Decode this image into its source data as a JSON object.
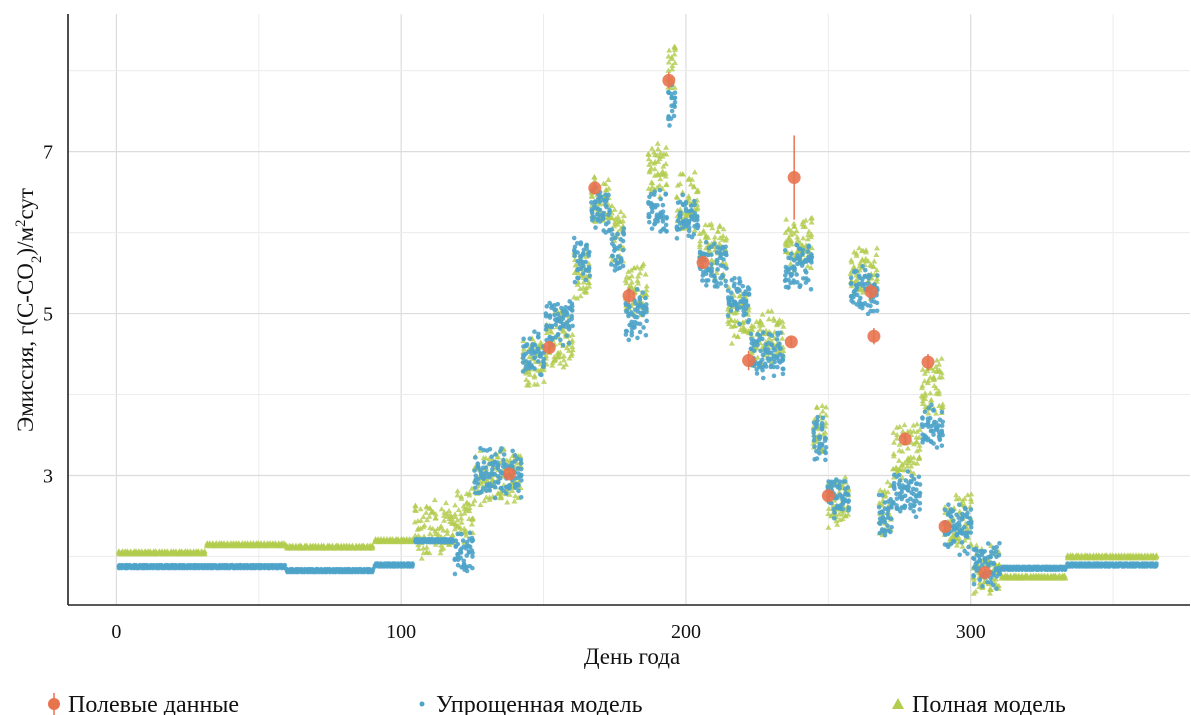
{
  "chart_data": {
    "type": "scatter",
    "xlabel": "День года",
    "ylabel_parts": {
      "main": "Эмиссия, г(C-CO",
      "sub": "2",
      "mid": ")/м",
      "sup": "2",
      "end": "сут"
    },
    "xlim": [
      -17,
      377
    ],
    "ylim": [
      1.4,
      8.7
    ],
    "x_ticks": [
      0,
      100,
      200,
      300
    ],
    "y_ticks": [
      3,
      5,
      7
    ],
    "grid": true,
    "legend_position": "bottom",
    "colors": {
      "field": "#e8734f",
      "simple": "#4ea3c9",
      "full": "#b2cc4e"
    },
    "series": [
      {
        "key": "field",
        "name": "Полевые данные",
        "marker": "circle",
        "points": [
          {
            "x": 138,
            "y": 3.02,
            "err": 0.05
          },
          {
            "x": 152,
            "y": 4.58,
            "err": 0.08
          },
          {
            "x": 168,
            "y": 6.55,
            "err": 0.08
          },
          {
            "x": 180,
            "y": 5.22,
            "err": 0.1
          },
          {
            "x": 194,
            "y": 7.88,
            "err": 0.1
          },
          {
            "x": 206,
            "y": 5.63,
            "err": 0.08
          },
          {
            "x": 222,
            "y": 4.42,
            "err": 0.12
          },
          {
            "x": 237,
            "y": 4.65,
            "err": 0.06
          },
          {
            "x": 238,
            "y": 6.68,
            "err": 0.52
          },
          {
            "x": 250,
            "y": 2.75,
            "err": 0.06
          },
          {
            "x": 265,
            "y": 5.27,
            "err": 0.1
          },
          {
            "x": 266,
            "y": 4.72,
            "err": 0.1
          },
          {
            "x": 277,
            "y": 3.45,
            "err": 0.08
          },
          {
            "x": 285,
            "y": 4.4,
            "err": 0.1
          },
          {
            "x": 291,
            "y": 2.37,
            "err": 0.06
          },
          {
            "x": 305,
            "y": 1.8,
            "err": 0.05
          }
        ]
      },
      {
        "key": "simple",
        "name": "Упрощенная модель",
        "marker": "dot",
        "segments": [
          {
            "x0": 1,
            "x1": 59,
            "y": 1.88
          },
          {
            "x0": 60,
            "x1": 90,
            "y": 1.83
          },
          {
            "x0": 91,
            "x1": 104,
            "y": 1.9
          },
          {
            "x0": 105,
            "x1": 118,
            "y": 2.2
          },
          {
            "x0": 119,
            "x1": 125,
            "y": 2.05
          },
          {
            "x0": 126,
            "x1": 142,
            "y": 3.05
          },
          {
            "x0": 143,
            "x1": 150,
            "y": 4.5
          },
          {
            "x0": 151,
            "x1": 160,
            "y": 4.9
          },
          {
            "x0": 161,
            "x1": 166,
            "y": 5.7
          },
          {
            "x0": 167,
            "x1": 173,
            "y": 6.3
          },
          {
            "x0": 174,
            "x1": 178,
            "y": 5.8
          },
          {
            "x0": 179,
            "x1": 186,
            "y": 5.0
          },
          {
            "x0": 187,
            "x1": 193,
            "y": 6.3
          },
          {
            "x0": 194,
            "x1": 196,
            "y": 7.6
          },
          {
            "x0": 197,
            "x1": 204,
            "y": 6.2
          },
          {
            "x0": 205,
            "x1": 214,
            "y": 5.6
          },
          {
            "x0": 215,
            "x1": 222,
            "y": 5.2
          },
          {
            "x0": 223,
            "x1": 234,
            "y": 4.5
          },
          {
            "x0": 235,
            "x1": 244,
            "y": 5.6
          },
          {
            "x0": 245,
            "x1": 249,
            "y": 3.5
          },
          {
            "x0": 250,
            "x1": 257,
            "y": 2.75
          },
          {
            "x0": 258,
            "x1": 267,
            "y": 5.3
          },
          {
            "x0": 268,
            "x1": 272,
            "y": 2.5
          },
          {
            "x0": 273,
            "x1": 282,
            "y": 2.8
          },
          {
            "x0": 283,
            "x1": 290,
            "y": 3.6
          },
          {
            "x0": 291,
            "x1": 300,
            "y": 2.35
          },
          {
            "x0": 301,
            "x1": 310,
            "y": 1.92
          },
          {
            "x0": 311,
            "x1": 333,
            "y": 1.86
          },
          {
            "x0": 334,
            "x1": 365,
            "y": 1.9
          }
        ]
      },
      {
        "key": "full",
        "name": "Полная модель",
        "marker": "triangle",
        "segments": [
          {
            "x0": 1,
            "x1": 31,
            "y": 2.05
          },
          {
            "x0": 32,
            "x1": 59,
            "y": 2.15
          },
          {
            "x0": 60,
            "x1": 90,
            "y": 2.12
          },
          {
            "x0": 91,
            "x1": 104,
            "y": 2.2
          },
          {
            "x0": 105,
            "x1": 118,
            "y": 2.35
          },
          {
            "x0": 119,
            "x1": 125,
            "y": 2.5
          },
          {
            "x0": 126,
            "x1": 142,
            "y": 3.0
          },
          {
            "x0": 143,
            "x1": 150,
            "y": 4.4
          },
          {
            "x0": 151,
            "x1": 160,
            "y": 4.7
          },
          {
            "x0": 161,
            "x1": 166,
            "y": 5.5
          },
          {
            "x0": 167,
            "x1": 173,
            "y": 6.4
          },
          {
            "x0": 174,
            "x1": 178,
            "y": 6.0
          },
          {
            "x0": 179,
            "x1": 186,
            "y": 5.3
          },
          {
            "x0": 187,
            "x1": 193,
            "y": 6.8
          },
          {
            "x0": 194,
            "x1": 196,
            "y": 8.1
          },
          {
            "x0": 197,
            "x1": 204,
            "y": 6.4
          },
          {
            "x0": 205,
            "x1": 214,
            "y": 5.8
          },
          {
            "x0": 215,
            "x1": 222,
            "y": 5.0
          },
          {
            "x0": 223,
            "x1": 234,
            "y": 4.7
          },
          {
            "x0": 235,
            "x1": 244,
            "y": 5.9
          },
          {
            "x0": 245,
            "x1": 249,
            "y": 3.6
          },
          {
            "x0": 250,
            "x1": 257,
            "y": 2.7
          },
          {
            "x0": 258,
            "x1": 267,
            "y": 5.5
          },
          {
            "x0": 268,
            "x1": 272,
            "y": 2.6
          },
          {
            "x0": 273,
            "x1": 282,
            "y": 3.3
          },
          {
            "x0": 283,
            "x1": 290,
            "y": 4.1
          },
          {
            "x0": 291,
            "x1": 300,
            "y": 2.45
          },
          {
            "x0": 301,
            "x1": 310,
            "y": 1.85
          },
          {
            "x0": 311,
            "x1": 333,
            "y": 1.75
          },
          {
            "x0": 334,
            "x1": 365,
            "y": 2.0
          }
        ]
      }
    ]
  }
}
